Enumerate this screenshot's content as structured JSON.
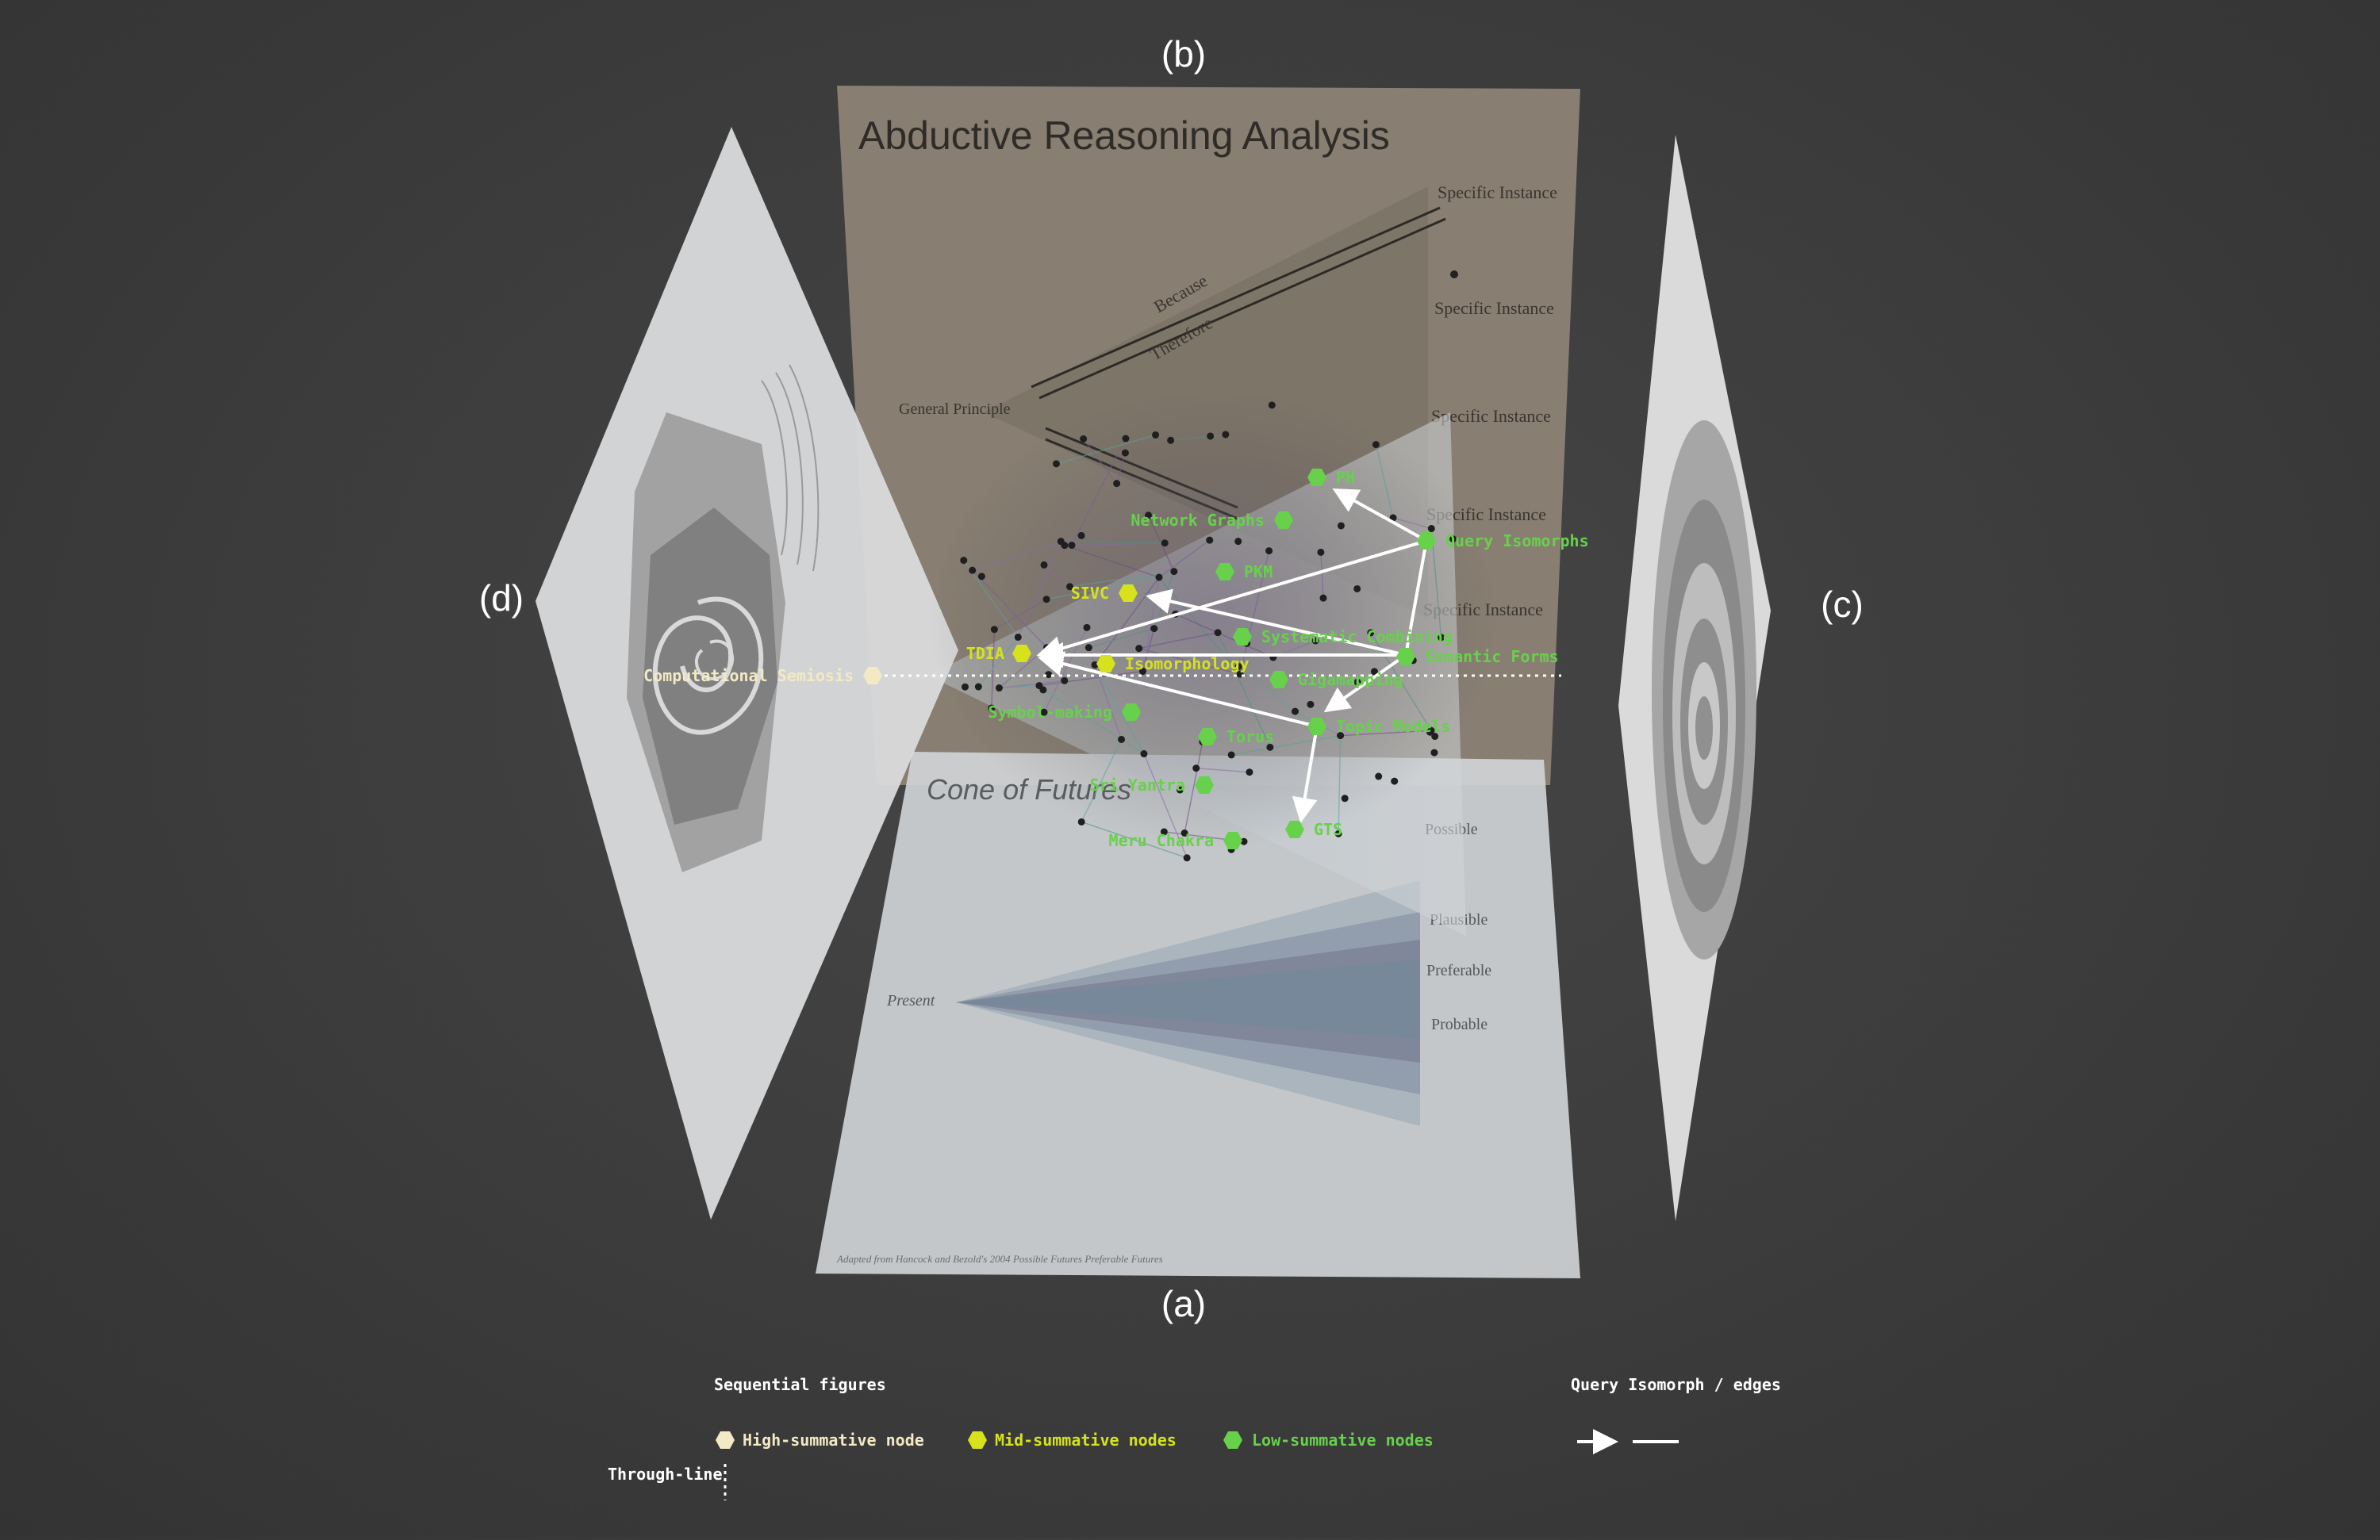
{
  "panel_labels": {
    "a": "(a)",
    "b": "(b)",
    "c": "(c)",
    "d": "(d)"
  },
  "panel_b": {
    "title": "Abductive Reasoning Analysis",
    "general_principle": "General Principle",
    "because": "Because",
    "therefore": "Therefore",
    "specific_instances": [
      "Specific Instance",
      "Specific Instance",
      "Specific Instance",
      "Specific Instance",
      "Specific Instance"
    ]
  },
  "panel_a": {
    "title": "Cone of Futures",
    "present": "Present",
    "possible": "Possible",
    "plausible": "Plausible",
    "preferable": "Preferable",
    "probable": "Probable",
    "footnote": "Adapted from Hancock and Bezold's 2004 Possible Futures Preferable Futures"
  },
  "nodes": {
    "high": {
      "name": "Computational Semiosis",
      "color": "#f3e9c4"
    },
    "mid": [
      {
        "name": "SIVC"
      },
      {
        "name": "TDIA"
      },
      {
        "name": "Isomorphology"
      }
    ],
    "mid_color": "#d6e21c",
    "low": [
      {
        "name": "PH"
      },
      {
        "name": "Network Graphs"
      },
      {
        "name": "Query Isomorphs"
      },
      {
        "name": "PKM"
      },
      {
        "name": "Systematic Combining"
      },
      {
        "name": "Semantic Forms"
      },
      {
        "name": "Gigamapping"
      },
      {
        "name": "Symbol-making"
      },
      {
        "name": "Topic Models"
      },
      {
        "name": "Torus"
      },
      {
        "name": "Sri Yantra"
      },
      {
        "name": "GTS"
      },
      {
        "name": "Meru Chakra"
      }
    ],
    "low_color": "#67d14c"
  },
  "legend": {
    "heading": "Sequential figures",
    "high_label": "High-summative node",
    "mid_label": "Mid-summative nodes",
    "low_label": "Low-summative nodes",
    "through_line_label": "Through-line",
    "edges_heading": "Query Isomorph / edges"
  },
  "colors": {
    "background": "#3d3d3d",
    "panel_slide": "#d9dadb",
    "panel_b_tint": "#8a8073",
    "edge": "#ffffff"
  }
}
